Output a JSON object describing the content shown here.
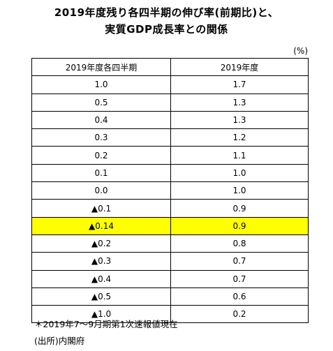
{
  "title": {
    "line1": "2019年度残り各四半期の伸び率(前期比)と、",
    "line2": "実質GDP成長率との関係"
  },
  "unit": "(%)",
  "table": {
    "headers": [
      "2019年度各四半期",
      "2019年度"
    ],
    "rows": [
      {
        "quarterly": "1.0",
        "fiscal_year": "1.7"
      },
      {
        "quarterly": "0.5",
        "fiscal_year": "1.3"
      },
      {
        "quarterly": "0.4",
        "fiscal_year": "1.3"
      },
      {
        "quarterly": "0.3",
        "fiscal_year": "1.2"
      },
      {
        "quarterly": "0.2",
        "fiscal_year": "1.1"
      },
      {
        "quarterly": "0.1",
        "fiscal_year": "1.0"
      },
      {
        "quarterly": "0.0",
        "fiscal_year": "1.0"
      },
      {
        "quarterly": "▲0.1",
        "fiscal_year": "0.9"
      },
      {
        "quarterly": "▲0.14",
        "fiscal_year": "0.9"
      },
      {
        "quarterly": "▲0.2",
        "fiscal_year": "0.8"
      },
      {
        "quarterly": "▲0.3",
        "fiscal_year": "0.7"
      },
      {
        "quarterly": "▲0.4",
        "fiscal_year": "0.7"
      },
      {
        "quarterly": "▲0.5",
        "fiscal_year": "0.6"
      },
      {
        "quarterly": "▲1.0",
        "fiscal_year": "0.2"
      }
    ],
    "highlight_row": 8,
    "highlight_color": "#ffff00"
  },
  "notes": {
    "asterisk": "＊2019年7～9月期第1次速報値現在",
    "source": "(出所)内閣府"
  }
}
